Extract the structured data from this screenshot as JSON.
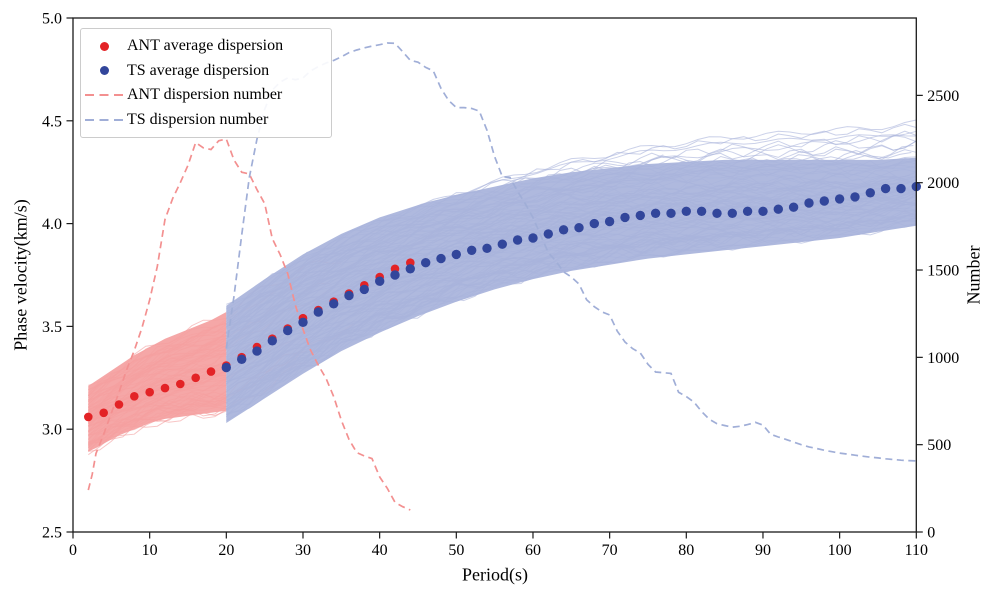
{
  "figure": {
    "background": "#ffffff",
    "frame_color": "#1a1a1a",
    "x_axis": {
      "label": "Period(s)",
      "ticks": [
        0,
        10,
        20,
        30,
        40,
        50,
        60,
        70,
        80,
        90,
        100,
        110
      ],
      "range": [
        0,
        110
      ]
    },
    "y_axis_left": {
      "label": "Phase velocity(km/s)",
      "ticks": [
        "2.5",
        "3.0",
        "3.5",
        "4.0",
        "4.5",
        "5.0"
      ],
      "range": [
        2.5,
        5.0
      ]
    },
    "y_axis_right": {
      "label": "Number",
      "ticks": [
        0,
        500,
        1000,
        1500,
        2000,
        2500
      ],
      "range": [
        0,
        2943
      ]
    }
  },
  "legend": {
    "items": [
      {
        "label": "ANT average dispersion",
        "marker": "dot",
        "color": "#e32326"
      },
      {
        "label": "TS average dispersion",
        "marker": "dot",
        "color": "#32469b"
      },
      {
        "label": "ANT dispersion number",
        "marker": "dashed-line",
        "color": "#f39090"
      },
      {
        "label": "TS dispersion number",
        "marker": "dashed-line",
        "color": "#a0aed7"
      }
    ]
  },
  "chart_data": {
    "type": "line",
    "title": "",
    "xlabel": "Period(s)",
    "ylabel_left": "Phase velocity(km/s)",
    "ylabel_right": "Number",
    "xlim": [
      0,
      110
    ],
    "ylim_left": [
      2.5,
      5.0
    ],
    "ylim_right": [
      0,
      2943
    ],
    "grid": false,
    "legend_position": "upper-left",
    "series": [
      {
        "name": "ANT average dispersion",
        "axis": "left",
        "style": "dots",
        "color": "#e32326",
        "points": [
          [
            2,
            3.06
          ],
          [
            4,
            3.08
          ],
          [
            6,
            3.12
          ],
          [
            8,
            3.16
          ],
          [
            10,
            3.18
          ],
          [
            12,
            3.2
          ],
          [
            14,
            3.22
          ],
          [
            16,
            3.25
          ],
          [
            18,
            3.28
          ],
          [
            20,
            3.31
          ],
          [
            22,
            3.35
          ],
          [
            24,
            3.4
          ],
          [
            26,
            3.44
          ],
          [
            28,
            3.49
          ],
          [
            30,
            3.54
          ],
          [
            32,
            3.58
          ],
          [
            34,
            3.62
          ],
          [
            36,
            3.66
          ],
          [
            38,
            3.7
          ],
          [
            40,
            3.74
          ],
          [
            42,
            3.78
          ],
          [
            44,
            3.81
          ]
        ]
      },
      {
        "name": "TS average dispersion",
        "axis": "left",
        "style": "dots",
        "color": "#32469b",
        "points": [
          [
            20,
            3.3
          ],
          [
            22,
            3.34
          ],
          [
            24,
            3.38
          ],
          [
            26,
            3.43
          ],
          [
            28,
            3.48
          ],
          [
            30,
            3.52
          ],
          [
            32,
            3.57
          ],
          [
            34,
            3.61
          ],
          [
            36,
            3.65
          ],
          [
            38,
            3.68
          ],
          [
            40,
            3.72
          ],
          [
            42,
            3.75
          ],
          [
            44,
            3.78
          ],
          [
            46,
            3.81
          ],
          [
            48,
            3.83
          ],
          [
            50,
            3.85
          ],
          [
            52,
            3.87
          ],
          [
            54,
            3.88
          ],
          [
            56,
            3.9
          ],
          [
            58,
            3.92
          ],
          [
            60,
            3.93
          ],
          [
            62,
            3.95
          ],
          [
            64,
            3.97
          ],
          [
            66,
            3.98
          ],
          [
            68,
            4.0
          ],
          [
            70,
            4.01
          ],
          [
            72,
            4.03
          ],
          [
            74,
            4.04
          ],
          [
            76,
            4.05
          ],
          [
            78,
            4.05
          ],
          [
            80,
            4.06
          ],
          [
            82,
            4.06
          ],
          [
            84,
            4.05
          ],
          [
            86,
            4.05
          ],
          [
            88,
            4.06
          ],
          [
            90,
            4.06
          ],
          [
            92,
            4.07
          ],
          [
            94,
            4.08
          ],
          [
            96,
            4.1
          ],
          [
            98,
            4.11
          ],
          [
            100,
            4.12
          ],
          [
            102,
            4.13
          ],
          [
            104,
            4.15
          ],
          [
            106,
            4.17
          ],
          [
            108,
            4.17
          ],
          [
            110,
            4.18
          ]
        ]
      },
      {
        "name": "ANT dispersion number",
        "axis": "right",
        "style": "dashed",
        "color": "#f39090",
        "points": [
          [
            2,
            240
          ],
          [
            2.5,
            330
          ],
          [
            3,
            450
          ],
          [
            4,
            560
          ],
          [
            5,
            680
          ],
          [
            6,
            800
          ],
          [
            7,
            930
          ],
          [
            8,
            1040
          ],
          [
            9,
            1170
          ],
          [
            10,
            1330
          ],
          [
            11,
            1520
          ],
          [
            12,
            1790
          ],
          [
            13,
            1910
          ],
          [
            14,
            2000
          ],
          [
            15,
            2100
          ],
          [
            16,
            2230
          ],
          [
            17,
            2200
          ],
          [
            18,
            2190
          ],
          [
            19,
            2240
          ],
          [
            20,
            2250
          ],
          [
            21,
            2130
          ],
          [
            22,
            2060
          ],
          [
            23,
            2050
          ],
          [
            24,
            1960
          ],
          [
            25,
            1880
          ],
          [
            26,
            1680
          ],
          [
            27,
            1590
          ],
          [
            28,
            1480
          ],
          [
            29,
            1300
          ],
          [
            30,
            1160
          ],
          [
            31,
            1040
          ],
          [
            32,
            955
          ],
          [
            33,
            880
          ],
          [
            34,
            775
          ],
          [
            35,
            640
          ],
          [
            36,
            530
          ],
          [
            37,
            455
          ],
          [
            38,
            435
          ],
          [
            39,
            420
          ],
          [
            40,
            315
          ],
          [
            41,
            250
          ],
          [
            42,
            170
          ],
          [
            43,
            145
          ],
          [
            44,
            126
          ]
        ]
      },
      {
        "name": "TS dispersion number",
        "axis": "right",
        "style": "dashed",
        "color": "#a0aed7",
        "points": [
          [
            20,
            1050
          ],
          [
            21,
            1350
          ],
          [
            22,
            1700
          ],
          [
            23,
            2030
          ],
          [
            24,
            2250
          ],
          [
            25,
            2420
          ],
          [
            26,
            2530
          ],
          [
            27,
            2575
          ],
          [
            28,
            2600
          ],
          [
            29,
            2590
          ],
          [
            30,
            2600
          ],
          [
            31,
            2640
          ],
          [
            32,
            2665
          ],
          [
            33,
            2685
          ],
          [
            34,
            2700
          ],
          [
            35,
            2720
          ],
          [
            36,
            2745
          ],
          [
            37,
            2760
          ],
          [
            38,
            2772
          ],
          [
            39,
            2782
          ],
          [
            40,
            2790
          ],
          [
            41,
            2800
          ],
          [
            42,
            2798
          ],
          [
            43,
            2750
          ],
          [
            44,
            2700
          ],
          [
            45,
            2690
          ],
          [
            46,
            2660
          ],
          [
            47,
            2640
          ],
          [
            48,
            2540
          ],
          [
            49,
            2470
          ],
          [
            50,
            2430
          ],
          [
            51,
            2430
          ],
          [
            52,
            2425
          ],
          [
            53,
            2410
          ],
          [
            54,
            2300
          ],
          [
            55,
            2150
          ],
          [
            56,
            2035
          ],
          [
            57,
            2030
          ],
          [
            58,
            1950
          ],
          [
            59,
            1880
          ],
          [
            60,
            1800
          ],
          [
            61,
            1700
          ],
          [
            62,
            1600
          ],
          [
            63,
            1550
          ],
          [
            64,
            1490
          ],
          [
            65,
            1460
          ],
          [
            66,
            1420
          ],
          [
            67,
            1330
          ],
          [
            68,
            1290
          ],
          [
            69,
            1260
          ],
          [
            70,
            1243
          ],
          [
            71,
            1150
          ],
          [
            72,
            1088
          ],
          [
            73,
            1050
          ],
          [
            74,
            1025
          ],
          [
            75,
            960
          ],
          [
            76,
            916
          ],
          [
            77,
            912
          ],
          [
            78,
            908
          ],
          [
            79,
            800
          ],
          [
            80,
            775
          ],
          [
            81,
            744
          ],
          [
            82,
            690
          ],
          [
            83,
            645
          ],
          [
            84,
            620
          ],
          [
            85,
            610
          ],
          [
            86,
            600
          ],
          [
            87,
            605
          ],
          [
            88,
            615
          ],
          [
            89,
            628
          ],
          [
            90,
            612
          ],
          [
            91,
            560
          ],
          [
            92,
            544
          ],
          [
            93,
            530
          ],
          [
            94,
            515
          ],
          [
            95,
            500
          ],
          [
            96,
            487
          ],
          [
            97,
            478
          ],
          [
            98,
            468
          ],
          [
            99,
            460
          ],
          [
            100,
            452
          ],
          [
            101,
            446
          ],
          [
            102,
            440
          ],
          [
            103,
            434
          ],
          [
            104,
            428
          ],
          [
            105,
            424
          ],
          [
            106,
            419
          ],
          [
            107,
            415
          ],
          [
            108,
            411
          ],
          [
            109,
            409
          ],
          [
            110,
            407
          ]
        ]
      }
    ],
    "bundles": [
      {
        "name": "ANT dispersion curves",
        "axis": "left",
        "color": "#f4a0a0",
        "periods": [
          2,
          4,
          6,
          8,
          10,
          12,
          14,
          16,
          18,
          20,
          25,
          30,
          37
        ],
        "top": [
          3.21,
          3.26,
          3.31,
          3.36,
          3.4,
          3.44,
          3.47,
          3.5,
          3.53,
          3.57,
          3.7,
          3.8,
          3.88
        ],
        "bottom": [
          2.89,
          2.93,
          2.97,
          3.0,
          3.03,
          3.05,
          3.06,
          3.07,
          3.08,
          3.09,
          3.2,
          3.32,
          3.46
        ],
        "fill_to": 20,
        "strand_count": 80,
        "seed": 7
      },
      {
        "name": "TS dispersion curves",
        "axis": "left",
        "color": "#a8b3db",
        "periods": [
          20,
          25,
          30,
          35,
          40,
          45,
          50,
          55,
          60,
          65,
          70,
          75,
          80,
          85,
          90,
          95,
          100,
          105,
          110
        ],
        "top": [
          3.6,
          3.73,
          3.85,
          3.95,
          4.03,
          4.09,
          4.14,
          4.18,
          4.22,
          4.25,
          4.27,
          4.29,
          4.3,
          4.31,
          4.31,
          4.31,
          4.31,
          4.31,
          4.32
        ],
        "bottom": [
          3.03,
          3.15,
          3.27,
          3.38,
          3.47,
          3.55,
          3.62,
          3.68,
          3.73,
          3.77,
          3.8,
          3.83,
          3.85,
          3.87,
          3.89,
          3.91,
          3.93,
          3.96,
          3.99
        ],
        "fill_to": 110,
        "strand_count": 110,
        "seed": 11,
        "fray": 0.32
      }
    ]
  }
}
